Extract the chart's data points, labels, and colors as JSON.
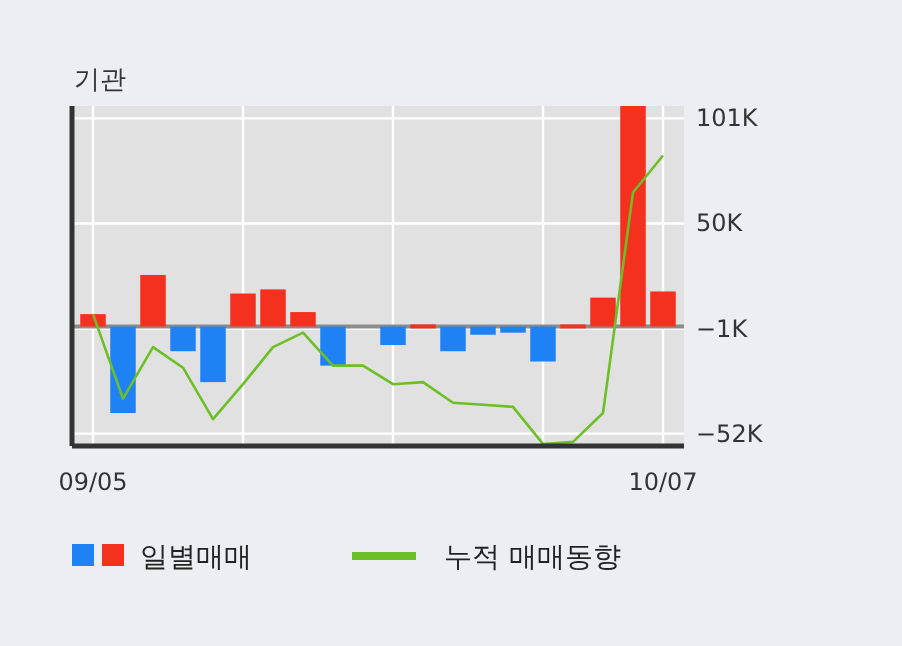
{
  "chart_data": {
    "type": "bar",
    "title": "기관",
    "categories": [
      "09/05",
      null,
      null,
      null,
      null,
      null,
      null,
      null,
      null,
      null,
      null,
      null,
      null,
      null,
      null,
      null,
      null,
      null,
      null,
      "10/07"
    ],
    "series": [
      {
        "name": "일별매매",
        "values": [
          6,
          -42,
          25,
          -12,
          -27,
          16,
          18,
          7,
          -19,
          0,
          -9,
          1,
          -12,
          -4,
          -3,
          -17,
          1,
          14,
          107,
          17
        ],
        "colors": [
          "#f4311e",
          "#1e82f5",
          "#f4311e",
          "#1e82f5",
          "#1e82f5",
          "#f4311e",
          "#f4311e",
          "#f4311e",
          "#1e82f5",
          "#f4311e",
          "#1e82f5",
          "#f4311e",
          "#1e82f5",
          "#1e82f5",
          "#1e82f5",
          "#1e82f5",
          "#f4311e",
          "#f4311e",
          "#f4311e",
          "#f4311e"
        ]
      },
      {
        "name": "누적 매매동향",
        "type": "line",
        "color": "#6cbf27",
        "values": [
          6,
          -35,
          -10,
          -20,
          -45,
          -28,
          -10,
          -3,
          -19,
          -19,
          -28,
          -27,
          -37,
          -38,
          -39,
          -57,
          -56,
          -42,
          65,
          83
        ]
      }
    ],
    "ylim": [
      -58,
      107
    ],
    "yticks": [
      {
        "value": 101,
        "label": "101K"
      },
      {
        "value": 50,
        "label": "50K"
      },
      {
        "value": -1,
        "label": "−1K"
      },
      {
        "value": -52,
        "label": "−52K"
      }
    ],
    "grid": true,
    "legend": "bottom"
  }
}
